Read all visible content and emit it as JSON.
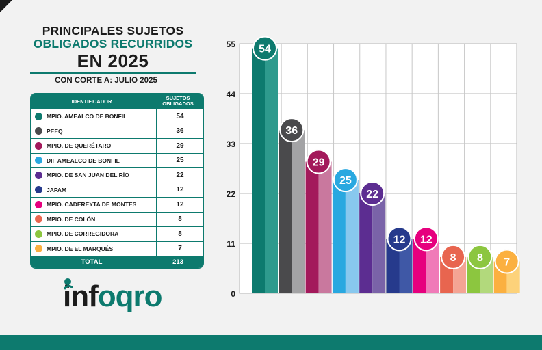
{
  "title": {
    "line1": "PRINCIPALES SUJETOS",
    "line2": "OBLIGADOS RECURRIDOS",
    "line3": "EN 2025",
    "cutoff": "CON CORTE A: JULIO 2025"
  },
  "table": {
    "header_id": "IDENTIFICADOR",
    "header_val": "SUJETOS OBLIGADOS",
    "total_label": "TOTAL",
    "total_value": "213"
  },
  "logo": {
    "text_prefix": "inf",
    "text_q": "oqro"
  },
  "colors": {
    "brand": "#0d7a6e"
  },
  "chart_data": {
    "type": "bar",
    "title": "PRINCIPALES SUJETOS OBLIGADOS RECURRIDOS EN 2025",
    "xlabel": "",
    "ylabel": "",
    "ylim": [
      0,
      55
    ],
    "yticks": [
      "0",
      "11",
      "22",
      "33",
      "44",
      "55"
    ],
    "ytick_values": [
      0,
      11,
      22,
      33,
      44,
      55
    ],
    "grid": true,
    "legend": "left-table",
    "categories": [
      "MPIO. AMEALCO DE BONFIL",
      "PEEQ",
      "MPIO. DE QUERÉTARO",
      "DIF AMEALCO DE BONFIL",
      "MPIO. DE SAN JUAN DEL RÍO",
      "JAPAM",
      "MPIO. CADEREYTA DE MONTES",
      "MPIO. DE COLÓN",
      "MPIO. DE CORREGIDORA",
      "MPIO. DE EL MARQUÉS"
    ],
    "values": [
      54,
      36,
      29,
      25,
      22,
      12,
      12,
      8,
      8,
      7
    ],
    "labels": [
      "54",
      "36",
      "29",
      "25",
      "22",
      "12",
      "12",
      "8",
      "8",
      "7"
    ],
    "colors": [
      "#0d7a6e",
      "#4a4a4c",
      "#a3195b",
      "#29a8e0",
      "#5c2d91",
      "#263a8c",
      "#e6007e",
      "#e8654f",
      "#8cc63f",
      "#fbb040"
    ],
    "light_colors": [
      "#2e9a8d",
      "#a3a3a5",
      "#c9789e",
      "#88c8ee",
      "#7a63a8",
      "#3f58a6",
      "#f07ab8",
      "#f4a494",
      "#b2d97c",
      "#fdd27a"
    ]
  }
}
